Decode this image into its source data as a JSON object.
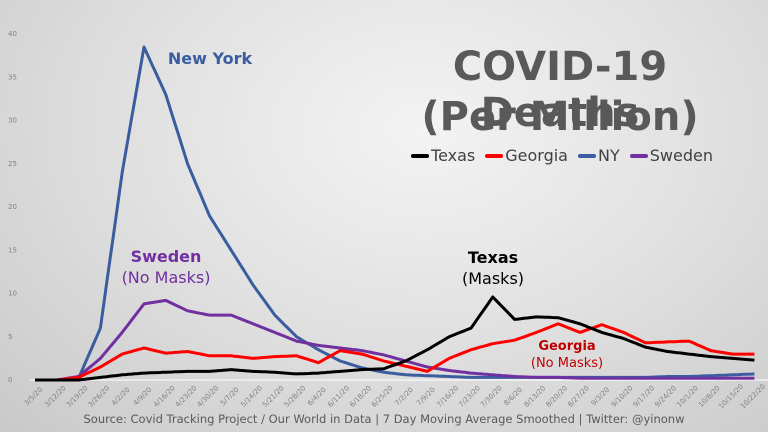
{
  "chart_data": {
    "type": "line",
    "title": "COVID-19 Deaths",
    "subtitle": "(Per Million)",
    "xlabel": "",
    "ylabel": "",
    "ylim": [
      0,
      40
    ],
    "yticks": [
      0,
      5,
      10,
      15,
      20,
      25,
      30,
      35,
      40
    ],
    "grid": false,
    "legend_position": "top-right",
    "x": [
      "3/5/20",
      "3/12/20",
      "3/19/20",
      "3/26/20",
      "4/2/20",
      "4/9/20",
      "4/16/20",
      "4/23/20",
      "4/30/20",
      "5/7/20",
      "5/14/20",
      "5/21/20",
      "5/28/20",
      "6/4/20",
      "6/11/20",
      "6/18/20",
      "6/25/20",
      "7/2/20",
      "7/9/20",
      "7/16/20",
      "7/23/20",
      "7/30/20",
      "8/6/20",
      "8/13/20",
      "8/20/20",
      "8/27/20",
      "9/3/20",
      "9/10/20",
      "9/17/20",
      "9/24/20",
      "10/1/20",
      "10/8/20",
      "10/15/20",
      "10/22/20"
    ],
    "series": [
      {
        "name": "Texas",
        "color": "#000000",
        "values": [
          0,
          0,
          0,
          0.3,
          0.6,
          0.8,
          0.9,
          1,
          1,
          1.2,
          1,
          0.9,
          0.7,
          0.8,
          1,
          1.2,
          1.3,
          2.2,
          3.5,
          5,
          6,
          9.6,
          7,
          7.3,
          7.2,
          6.5,
          5.5,
          4.8,
          3.8,
          3.3,
          3,
          2.7,
          2.5,
          2.3
        ]
      },
      {
        "name": "Georgia",
        "color": "#ff0000",
        "values": [
          0,
          0,
          0.3,
          1.5,
          3,
          3.7,
          3.1,
          3.3,
          2.8,
          2.8,
          2.5,
          2.7,
          2.8,
          2,
          3.4,
          3,
          2.2,
          1.6,
          1,
          2.5,
          3.5,
          4.2,
          4.6,
          5.5,
          6.5,
          5.5,
          6.4,
          5.5,
          4.3,
          4.4,
          4.5,
          3.4,
          3,
          3
        ]
      },
      {
        "name": "NY",
        "color": "#3a5da0",
        "values": [
          0,
          0,
          0.2,
          6,
          24,
          38.5,
          33,
          25,
          19,
          15,
          11,
          7.5,
          5,
          3.5,
          2.2,
          1.4,
          0.9,
          0.6,
          0.5,
          0.4,
          0.3,
          0.3,
          0.3,
          0.3,
          0.3,
          0.3,
          0.3,
          0.3,
          0.3,
          0.4,
          0.4,
          0.5,
          0.6,
          0.7
        ]
      },
      {
        "name": "Sweden",
        "color": "#7030a0",
        "values": [
          0,
          0,
          0.4,
          2.5,
          5.5,
          8.8,
          9.2,
          8,
          7.5,
          7.5,
          6.5,
          5.5,
          4.5,
          4,
          3.7,
          3.4,
          2.9,
          2.2,
          1.5,
          1.1,
          0.8,
          0.6,
          0.4,
          0.3,
          0.3,
          0.2,
          0.2,
          0.2,
          0.2,
          0.2,
          0.2,
          0.2,
          0.2,
          0.2
        ]
      }
    ],
    "annotations": [
      {
        "series": "NY",
        "lines": [
          "New York"
        ],
        "color": "#3a5da0"
      },
      {
        "series": "Sweden",
        "lines": [
          "Sweden",
          "(No Masks)"
        ],
        "color": "#7030a0"
      },
      {
        "series": "Texas",
        "lines": [
          "Texas",
          "(Masks)"
        ],
        "color": "#000000"
      },
      {
        "series": "Georgia",
        "lines": [
          "Georgia",
          "(No Masks)"
        ],
        "color": "#c00000"
      }
    ],
    "source": "Source: Covid Tracking Project / Our World in Data | 7 Day Moving Average Smoothed | Twitter: @yinonw"
  }
}
